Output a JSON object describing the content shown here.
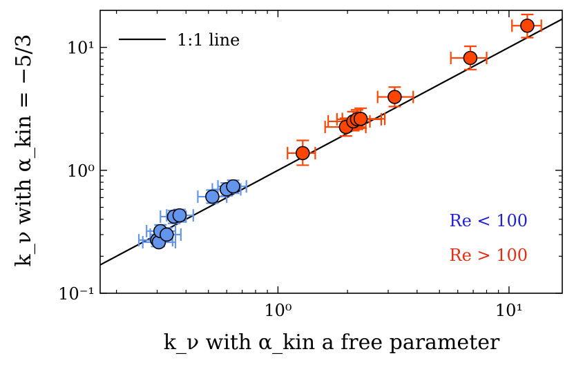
{
  "chart_data": {
    "type": "scatter",
    "title": "",
    "xscale": "log",
    "yscale": "log",
    "xlim": [
      0.17,
      17
    ],
    "ylim": [
      0.1,
      20
    ],
    "xlabel": "k_ν with α_kin a free parameter",
    "ylabel": "k_ν with α_kin = −5/3",
    "x_ticks": [
      {
        "value": 1,
        "label": "10⁰"
      },
      {
        "value": 10,
        "label": "10¹"
      }
    ],
    "y_ticks": [
      {
        "value": 0.1,
        "label": "10⁻¹"
      },
      {
        "value": 1,
        "label": "10⁰"
      },
      {
        "value": 10,
        "label": "10¹"
      }
    ],
    "grid": false,
    "reference_line": {
      "name": "1:1 line",
      "color": "#000000"
    },
    "legend": {
      "placement": "top-left",
      "entries": [
        "1:1 line"
      ]
    },
    "annotations": [
      {
        "text": "Re < 100",
        "color": "#1f1fd6"
      },
      {
        "text": "Re > 100",
        "color": "#e52b12"
      }
    ],
    "series": [
      {
        "marker_color": "#6495ED",
        "error_color": "#6495ED",
        "points": [
          {
            "x": 0.3,
            "y": 0.27,
            "xerr": [
              0.25,
              0.35
            ],
            "yerr": [
              0.24,
              0.3
            ]
          },
          {
            "x": 0.305,
            "y": 0.26,
            "xerr": [
              0.26,
              0.36
            ],
            "yerr": [
              0.24,
              0.29
            ]
          },
          {
            "x": 0.31,
            "y": 0.32,
            "xerr": [
              0.27,
              0.36
            ],
            "yerr": [
              0.28,
              0.36
            ]
          },
          {
            "x": 0.33,
            "y": 0.3,
            "xerr": [
              0.28,
              0.38
            ],
            "yerr": [
              0.26,
              0.34
            ]
          },
          {
            "x": 0.355,
            "y": 0.42,
            "xerr": [
              0.31,
              0.4
            ],
            "yerr": [
              0.37,
              0.47
            ]
          },
          {
            "x": 0.375,
            "y": 0.43,
            "xerr": [
              0.33,
              0.43
            ],
            "yerr": [
              0.38,
              0.48
            ]
          },
          {
            "x": 0.52,
            "y": 0.61,
            "xerr": [
              0.45,
              0.6
            ],
            "yerr": [
              0.54,
              0.69
            ]
          },
          {
            "x": 0.6,
            "y": 0.7,
            "xerr": [
              0.52,
              0.69
            ],
            "yerr": [
              0.62,
              0.79
            ]
          },
          {
            "x": 0.64,
            "y": 0.74,
            "xerr": [
              0.55,
              0.73
            ],
            "yerr": [
              0.65,
              0.83
            ]
          }
        ]
      },
      {
        "marker_color": "#FF4500",
        "error_color": "#FF4500",
        "points": [
          {
            "x": 1.28,
            "y": 1.38,
            "xerr": [
              1.1,
              1.45
            ],
            "yerr": [
              1.1,
              1.75
            ]
          },
          {
            "x": 1.97,
            "y": 2.25,
            "xerr": [
              1.6,
              2.4
            ],
            "yerr": [
              1.9,
              2.65
            ]
          },
          {
            "x": 2.12,
            "y": 2.5,
            "xerr": [
              1.65,
              2.5
            ],
            "yerr": [
              2.1,
              3.0
            ]
          },
          {
            "x": 2.2,
            "y": 2.6,
            "xerr": [
              1.8,
              2.8
            ],
            "yerr": [
              2.15,
              3.1
            ]
          },
          {
            "x": 2.28,
            "y": 2.62,
            "xerr": [
              1.9,
              2.9
            ],
            "yerr": [
              2.2,
              3.2
            ]
          },
          {
            "x": 3.2,
            "y": 3.95,
            "xerr": [
              2.7,
              3.85
            ],
            "yerr": [
              3.3,
              4.75
            ]
          },
          {
            "x": 6.8,
            "y": 8.2,
            "xerr": [
              5.6,
              8.0
            ],
            "yerr": [
              6.6,
              10.2
            ]
          },
          {
            "x": 12.0,
            "y": 15.0,
            "xerr": [
              10.3,
              13.8
            ],
            "yerr": [
              12.0,
              18.5
            ]
          }
        ]
      }
    ]
  }
}
